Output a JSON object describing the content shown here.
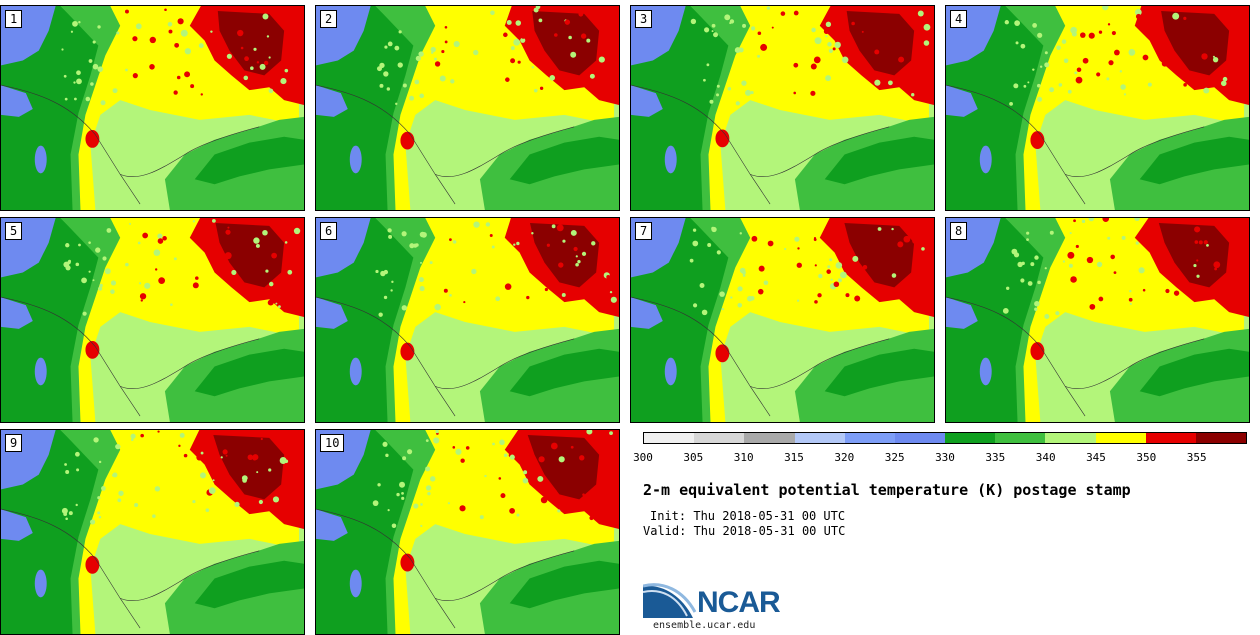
{
  "panels": [
    {
      "label": "1"
    },
    {
      "label": "2"
    },
    {
      "label": "3"
    },
    {
      "label": "4"
    },
    {
      "label": "5"
    },
    {
      "label": "6"
    },
    {
      "label": "7"
    },
    {
      "label": "8"
    },
    {
      "label": "9"
    },
    {
      "label": "10"
    }
  ],
  "legend": {
    "colors": [
      "#f0f0f0",
      "#d7d7d7",
      "#a9a9a9",
      "#b3c8f7",
      "#7e9ef7",
      "#6e8af0",
      "#0f9f1f",
      "#3fbf3f",
      "#b3f57a",
      "#ffff00",
      "#e60000",
      "#8b0000"
    ],
    "ticks": [
      "300",
      "305",
      "310",
      "315",
      "320",
      "325",
      "330",
      "335",
      "340",
      "345",
      "350",
      "355"
    ]
  },
  "title": "2-m equivalent potential temperature (K) postage stamp",
  "init": "Init: Thu 2018-05-31 00 UTC",
  "valid": "Valid: Thu 2018-05-31 00 UTC",
  "logo": {
    "text": "NCAR",
    "site": "ensemble.ucar.edu"
  }
}
